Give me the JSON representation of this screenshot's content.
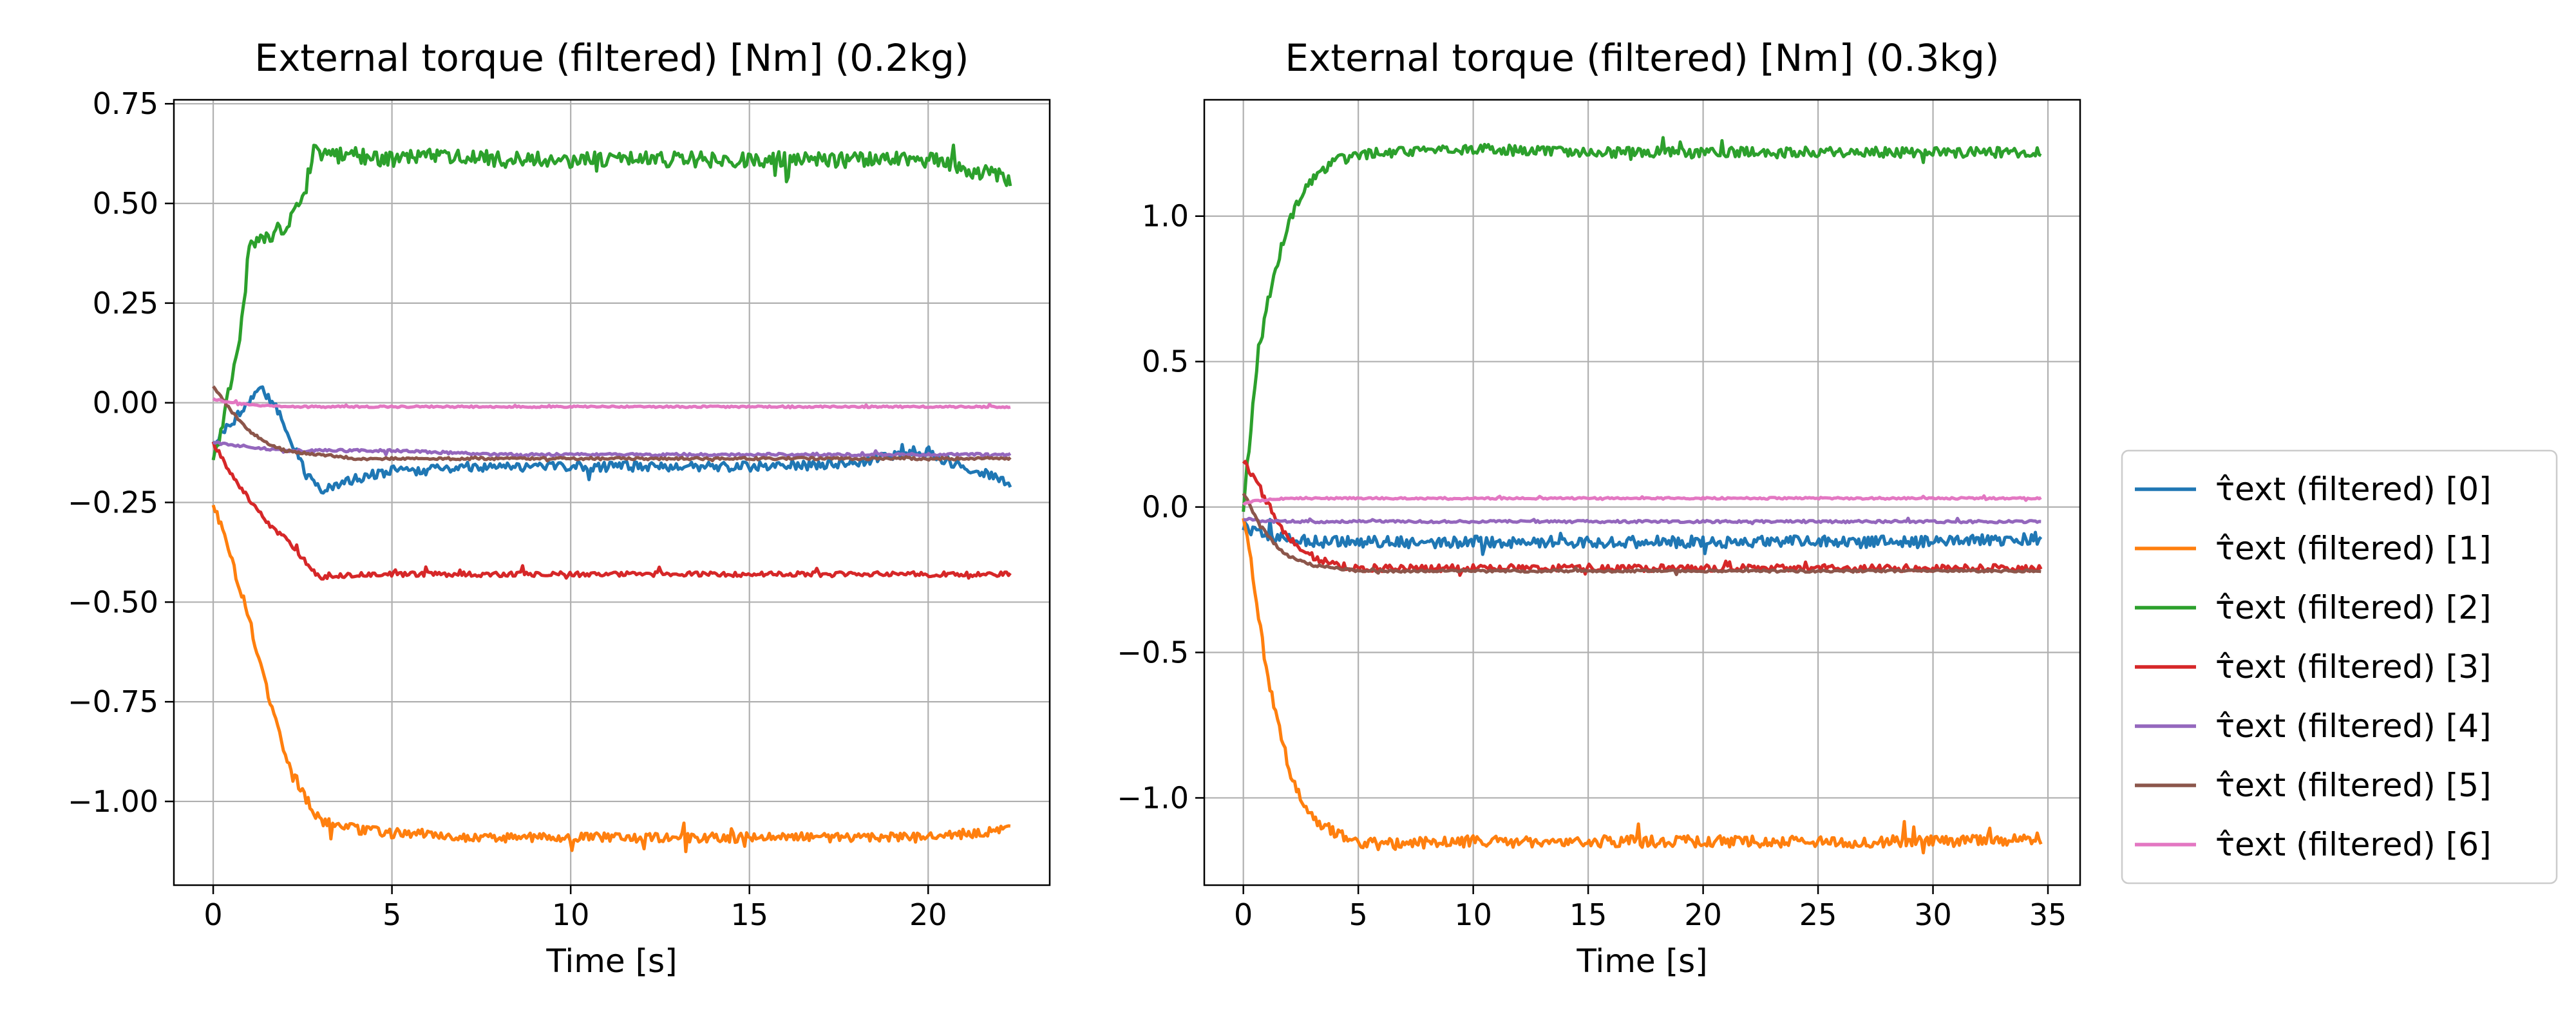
{
  "legend": {
    "entries": [
      "τ̂ext (filtered) [0]",
      "τ̂ext (filtered) [1]",
      "τ̂ext (filtered) [2]",
      "τ̂ext (filtered) [3]",
      "τ̂ext (filtered) [4]",
      "τ̂ext (filtered) [5]",
      "τ̂ext (filtered) [6]"
    ],
    "placement": "outside-right"
  },
  "colors": [
    "#1f77b4",
    "#ff7f0e",
    "#2ca02c",
    "#d62728",
    "#9467bd",
    "#8c564b",
    "#e377c2"
  ],
  "chart_data": [
    {
      "type": "line",
      "title": "External torque (filtered) [Nm] (0.2kg)",
      "xlabel": "Time [s]",
      "ylabel": "",
      "xlim": [
        -1.1,
        23.4
      ],
      "ylim": [
        -1.21,
        0.76
      ],
      "xticks": [
        0,
        5,
        10,
        15,
        20
      ],
      "xtick_labels": [
        "0",
        "5",
        "10",
        "15",
        "20"
      ],
      "yticks": [
        0.75,
        0.5,
        0.25,
        0.0,
        -0.25,
        -0.5,
        -0.75,
        -1.0
      ],
      "ytick_labels": [
        "0.75",
        "0.50",
        "0.25",
        "0.00",
        "−0.25",
        "−0.50",
        "−0.75",
        "−1.00"
      ],
      "grid": true,
      "series": [
        {
          "name": "τ̂ext (filtered) [0]",
          "x": [
            0,
            0.5,
            1,
            1.3,
            1.8,
            2.2,
            2.6,
            3.0,
            4,
            5,
            6,
            7,
            8,
            10,
            12,
            14,
            16,
            18,
            19.7,
            21,
            22.3
          ],
          "y": [
            -0.1,
            -0.05,
            0.0,
            0.04,
            -0.02,
            -0.1,
            -0.18,
            -0.22,
            -0.19,
            -0.17,
            -0.17,
            -0.16,
            -0.16,
            -0.16,
            -0.16,
            -0.16,
            -0.16,
            -0.15,
            -0.12,
            -0.16,
            -0.2
          ]
        },
        {
          "name": "τ̂ext (filtered) [1]",
          "x": [
            0,
            0.3,
            0.6,
            1.0,
            1.5,
            2.0,
            2.5,
            3.0,
            4,
            5,
            6,
            7,
            8,
            10,
            12,
            14,
            16,
            18,
            20,
            22.3
          ],
          "y": [
            -0.26,
            -0.32,
            -0.42,
            -0.54,
            -0.72,
            -0.88,
            -0.98,
            -1.05,
            -1.07,
            -1.08,
            -1.08,
            -1.09,
            -1.09,
            -1.09,
            -1.09,
            -1.09,
            -1.09,
            -1.09,
            -1.09,
            -1.07
          ]
        },
        {
          "name": "τ̂ext (filtered) [2]",
          "x": [
            0,
            0.5,
            0.8,
            1.0,
            1.2,
            1.5,
            2.0,
            2.5,
            2.8,
            3.2,
            4,
            5,
            6,
            7,
            8,
            10,
            12,
            14,
            16,
            18,
            20,
            22.3
          ],
          "y": [
            -0.15,
            0.05,
            0.2,
            0.38,
            0.4,
            0.42,
            0.44,
            0.5,
            0.63,
            0.62,
            0.62,
            0.61,
            0.62,
            0.62,
            0.61,
            0.61,
            0.61,
            0.61,
            0.61,
            0.61,
            0.61,
            0.56
          ]
        },
        {
          "name": "τ̂ext (filtered) [3]",
          "x": [
            0,
            0.5,
            1.0,
            1.5,
            2.0,
            2.5,
            3.0,
            4,
            5,
            6,
            8,
            10,
            12,
            14,
            16,
            18,
            20,
            22.3
          ],
          "y": [
            -0.1,
            -0.18,
            -0.24,
            -0.3,
            -0.34,
            -0.39,
            -0.44,
            -0.43,
            -0.43,
            -0.43,
            -0.43,
            -0.43,
            -0.43,
            -0.43,
            -0.43,
            -0.43,
            -0.43,
            -0.43
          ]
        },
        {
          "name": "τ̂ext (filtered) [4]",
          "x": [
            0,
            1,
            2,
            3,
            5,
            8,
            12,
            16,
            20,
            22.3
          ],
          "y": [
            -0.1,
            -0.11,
            -0.12,
            -0.12,
            -0.12,
            -0.13,
            -0.13,
            -0.13,
            -0.13,
            -0.13
          ]
        },
        {
          "name": "τ̂ext (filtered) [5]",
          "x": [
            0,
            0.5,
            1.0,
            1.5,
            2.0,
            3.0,
            4.0,
            6,
            10,
            15,
            20,
            22.3
          ],
          "y": [
            0.04,
            -0.02,
            -0.07,
            -0.1,
            -0.12,
            -0.13,
            -0.14,
            -0.14,
            -0.14,
            -0.14,
            -0.14,
            -0.14
          ]
        },
        {
          "name": "τ̂ext (filtered) [6]",
          "x": [
            0,
            0.5,
            1.0,
            2.0,
            4.0,
            8,
            12,
            16,
            20,
            22.3
          ],
          "y": [
            0.01,
            0.0,
            -0.005,
            -0.01,
            -0.01,
            -0.01,
            -0.01,
            -0.01,
            -0.01,
            -0.01
          ]
        }
      ]
    },
    {
      "type": "line",
      "title": "External torque (filtered) [Nm] (0.3kg)",
      "xlabel": "Time [s]",
      "ylabel": "",
      "xlim": [
        -1.7,
        36.4
      ],
      "ylim": [
        -1.3,
        1.4
      ],
      "xticks": [
        0,
        5,
        10,
        15,
        20,
        25,
        30,
        35
      ],
      "xtick_labels": [
        "0",
        "5",
        "10",
        "15",
        "20",
        "25",
        "30",
        "35"
      ],
      "yticks": [
        1.0,
        0.5,
        0.0,
        -0.5,
        -1.0
      ],
      "ytick_labels": [
        "1.0",
        "0.5",
        "0.0",
        "−0.5",
        "−1.0"
      ],
      "grid": true,
      "series": [
        {
          "name": "τ̂ext (filtered) [0]",
          "x": [
            0,
            0.5,
            1,
            2,
            3,
            5,
            10,
            15,
            20,
            25,
            30,
            34.7
          ],
          "y": [
            -0.06,
            -0.09,
            -0.1,
            -0.11,
            -0.12,
            -0.12,
            -0.12,
            -0.12,
            -0.12,
            -0.12,
            -0.12,
            -0.11
          ]
        },
        {
          "name": "τ̂ext (filtered) [1]",
          "x": [
            0,
            0.3,
            0.6,
            1.0,
            1.5,
            2.0,
            2.5,
            3.0,
            4.0,
            5.0,
            6,
            10,
            15,
            20,
            25,
            30,
            34.7
          ],
          "y": [
            -0.02,
            -0.15,
            -0.35,
            -0.55,
            -0.75,
            -0.9,
            -1.0,
            -1.07,
            -1.12,
            -1.15,
            -1.16,
            -1.15,
            -1.15,
            -1.15,
            -1.15,
            -1.15,
            -1.14
          ]
        },
        {
          "name": "τ̂ext (filtered) [2]",
          "x": [
            0,
            0.3,
            0.6,
            1.0,
            1.5,
            2.0,
            2.5,
            3.0,
            3.5,
            4.0,
            5.0,
            6,
            8,
            10,
            15,
            20,
            25,
            30,
            34.7
          ],
          "y": [
            0.0,
            0.25,
            0.5,
            0.68,
            0.85,
            0.98,
            1.07,
            1.12,
            1.16,
            1.19,
            1.21,
            1.22,
            1.22,
            1.23,
            1.22,
            1.22,
            1.22,
            1.22,
            1.22
          ]
        },
        {
          "name": "τ̂ext (filtered) [3]",
          "x": [
            0,
            0.5,
            1.0,
            1.5,
            2.0,
            3.0,
            4.0,
            5,
            10,
            15,
            20,
            25,
            30,
            34.7
          ],
          "y": [
            0.16,
            0.1,
            0.02,
            -0.05,
            -0.11,
            -0.17,
            -0.2,
            -0.21,
            -0.21,
            -0.21,
            -0.21,
            -0.21,
            -0.21,
            -0.21
          ]
        },
        {
          "name": "τ̂ext (filtered) [4]",
          "x": [
            0,
            1,
            2,
            4,
            8,
            15,
            25,
            34.7
          ],
          "y": [
            -0.04,
            -0.05,
            -0.05,
            -0.05,
            -0.05,
            -0.05,
            -0.05,
            -0.05
          ]
        },
        {
          "name": "τ̂ext (filtered) [5]",
          "x": [
            0,
            0.5,
            1.0,
            1.5,
            2.0,
            3.0,
            4.0,
            5,
            10,
            15,
            20,
            25,
            30,
            34.7
          ],
          "y": [
            0.05,
            -0.03,
            -0.09,
            -0.14,
            -0.17,
            -0.2,
            -0.21,
            -0.22,
            -0.22,
            -0.22,
            -0.22,
            -0.22,
            -0.22,
            -0.22
          ]
        },
        {
          "name": "τ̂ext (filtered) [6]",
          "x": [
            0,
            0.5,
            1.0,
            2.0,
            4.0,
            8,
            15,
            25,
            34.7
          ],
          "y": [
            0.01,
            0.02,
            0.025,
            0.03,
            0.03,
            0.03,
            0.03,
            0.03,
            0.03
          ]
        }
      ]
    }
  ]
}
